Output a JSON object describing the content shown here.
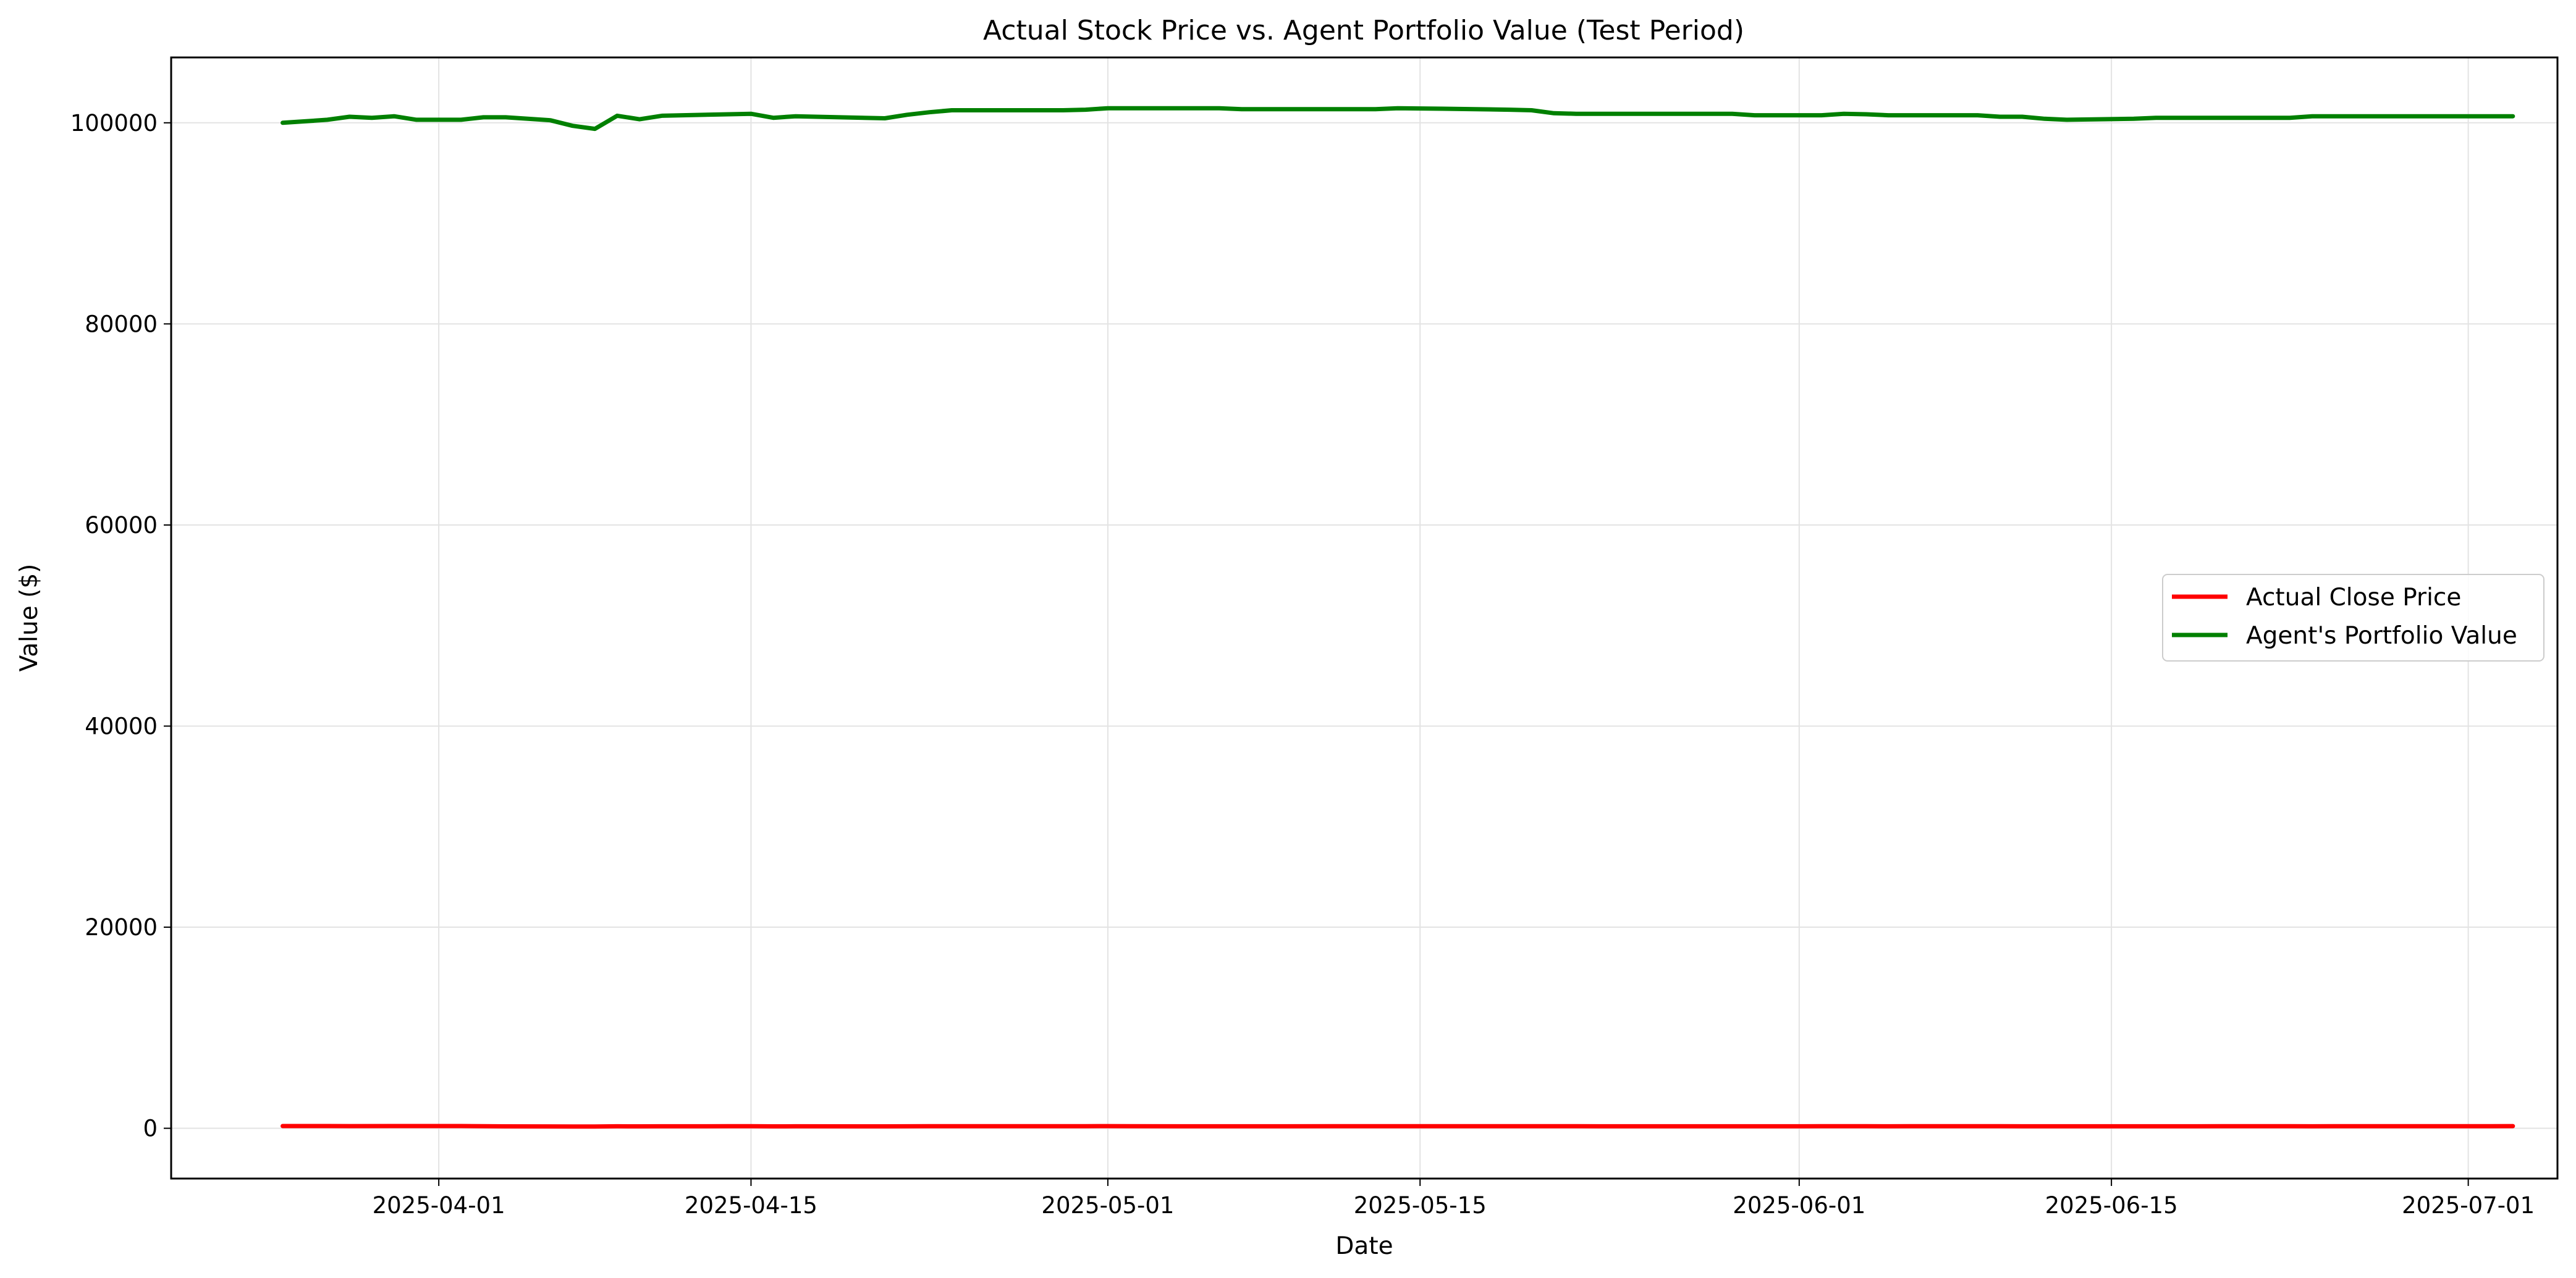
{
  "chart_data": {
    "type": "line",
    "title": "Actual Stock Price vs. Agent Portfolio Value (Test Period)",
    "xlabel": "Date",
    "ylabel": "Value ($)",
    "xlim": [
      "2025-03-20",
      "2025-07-05"
    ],
    "ylim": [
      -5000,
      106500
    ],
    "x_ticks": [
      "2025-04-01",
      "2025-04-15",
      "2025-05-01",
      "2025-05-15",
      "2025-06-01",
      "2025-06-15",
      "2025-07-01"
    ],
    "y_ticks": [
      0,
      20000,
      40000,
      60000,
      80000,
      100000
    ],
    "grid": true,
    "legend_position": "center-right",
    "series": [
      {
        "name": "Actual Close Price",
        "color": "#ff0000",
        "points": [
          [
            "2025-03-25",
            220
          ],
          [
            "2025-03-26",
            220
          ],
          [
            "2025-03-27",
            220
          ],
          [
            "2025-03-28",
            218
          ],
          [
            "2025-03-31",
            222
          ],
          [
            "2025-04-01",
            223
          ],
          [
            "2025-04-02",
            223
          ],
          [
            "2025-04-03",
            203
          ],
          [
            "2025-04-04",
            188
          ],
          [
            "2025-04-07",
            181
          ],
          [
            "2025-04-08",
            172
          ],
          [
            "2025-04-09",
            198
          ],
          [
            "2025-04-10",
            190
          ],
          [
            "2025-04-11",
            198
          ],
          [
            "2025-04-14",
            202
          ],
          [
            "2025-04-15",
            202
          ],
          [
            "2025-04-16",
            194
          ],
          [
            "2025-04-17",
            197
          ],
          [
            "2025-04-21",
            193
          ],
          [
            "2025-04-22",
            199
          ],
          [
            "2025-04-23",
            204
          ],
          [
            "2025-04-24",
            208
          ],
          [
            "2025-04-25",
            209
          ],
          [
            "2025-04-28",
            210
          ],
          [
            "2025-04-29",
            211
          ],
          [
            "2025-04-30",
            212
          ],
          [
            "2025-05-01",
            213
          ],
          [
            "2025-05-02",
            205
          ],
          [
            "2025-05-05",
            198
          ],
          [
            "2025-05-06",
            198
          ],
          [
            "2025-05-07",
            196
          ],
          [
            "2025-05-08",
            197
          ],
          [
            "2025-05-09",
            198
          ],
          [
            "2025-05-12",
            210
          ],
          [
            "2025-05-13",
            212
          ],
          [
            "2025-05-14",
            212
          ],
          [
            "2025-05-15",
            211
          ],
          [
            "2025-05-16",
            211
          ],
          [
            "2025-05-19",
            208
          ],
          [
            "2025-05-20",
            206
          ],
          [
            "2025-05-21",
            202
          ],
          [
            "2025-05-22",
            201
          ],
          [
            "2025-05-23",
            195
          ],
          [
            "2025-05-27",
            200
          ],
          [
            "2025-05-28",
            200
          ],
          [
            "2025-05-29",
            199
          ],
          [
            "2025-05-30",
            200
          ],
          [
            "2025-06-02",
            201
          ],
          [
            "2025-06-03",
            203
          ],
          [
            "2025-06-04",
            202
          ],
          [
            "2025-06-05",
            200
          ],
          [
            "2025-06-06",
            203
          ],
          [
            "2025-06-09",
            201
          ],
          [
            "2025-06-10",
            202
          ],
          [
            "2025-06-11",
            198
          ],
          [
            "2025-06-12",
            199
          ],
          [
            "2025-06-13",
            196
          ],
          [
            "2025-06-16",
            198
          ],
          [
            "2025-06-17",
            195
          ],
          [
            "2025-06-18",
            196
          ],
          [
            "2025-06-20",
            201
          ],
          [
            "2025-06-23",
            201
          ],
          [
            "2025-06-24",
            200
          ],
          [
            "2025-06-25",
            201
          ],
          [
            "2025-06-26",
            201
          ],
          [
            "2025-06-27",
            201
          ],
          [
            "2025-06-30",
            205
          ],
          [
            "2025-07-01",
            207
          ],
          [
            "2025-07-02",
            212
          ],
          [
            "2025-07-03",
            213
          ]
        ]
      },
      {
        "name": "Agent's Portfolio Value",
        "color": "#008000",
        "points": [
          [
            "2025-03-25",
            100000
          ],
          [
            "2025-03-26",
            100150
          ],
          [
            "2025-03-27",
            100300
          ],
          [
            "2025-03-28",
            100600
          ],
          [
            "2025-03-29",
            100500
          ],
          [
            "2025-03-30",
            100650
          ],
          [
            "2025-03-31",
            100300
          ],
          [
            "2025-04-02",
            100300
          ],
          [
            "2025-04-03",
            100550
          ],
          [
            "2025-04-04",
            100550
          ],
          [
            "2025-04-06",
            100250
          ],
          [
            "2025-04-07",
            99700
          ],
          [
            "2025-04-08",
            99400
          ],
          [
            "2025-04-09",
            100700
          ],
          [
            "2025-04-10",
            100350
          ],
          [
            "2025-04-11",
            100700
          ],
          [
            "2025-04-14",
            100850
          ],
          [
            "2025-04-15",
            100900
          ],
          [
            "2025-04-16",
            100500
          ],
          [
            "2025-04-17",
            100650
          ],
          [
            "2025-04-21",
            100450
          ],
          [
            "2025-04-22",
            100800
          ],
          [
            "2025-04-23",
            101050
          ],
          [
            "2025-04-24",
            101250
          ],
          [
            "2025-04-29",
            101250
          ],
          [
            "2025-04-30",
            101300
          ],
          [
            "2025-05-01",
            101450
          ],
          [
            "2025-05-06",
            101450
          ],
          [
            "2025-05-07",
            101350
          ],
          [
            "2025-05-13",
            101350
          ],
          [
            "2025-05-14",
            101450
          ],
          [
            "2025-05-16",
            101400
          ],
          [
            "2025-05-19",
            101300
          ],
          [
            "2025-05-20",
            101250
          ],
          [
            "2025-05-21",
            100950
          ],
          [
            "2025-05-22",
            100900
          ],
          [
            "2025-05-29",
            100900
          ],
          [
            "2025-05-30",
            100750
          ],
          [
            "2025-06-02",
            100750
          ],
          [
            "2025-06-03",
            100900
          ],
          [
            "2025-06-04",
            100850
          ],
          [
            "2025-06-05",
            100750
          ],
          [
            "2025-06-09",
            100750
          ],
          [
            "2025-06-10",
            100600
          ],
          [
            "2025-06-11",
            100600
          ],
          [
            "2025-06-12",
            100400
          ],
          [
            "2025-06-13",
            100300
          ],
          [
            "2025-06-16",
            100400
          ],
          [
            "2025-06-17",
            100500
          ],
          [
            "2025-06-23",
            100500
          ],
          [
            "2025-06-24",
            100650
          ],
          [
            "2025-07-03",
            100650
          ]
        ]
      }
    ]
  }
}
